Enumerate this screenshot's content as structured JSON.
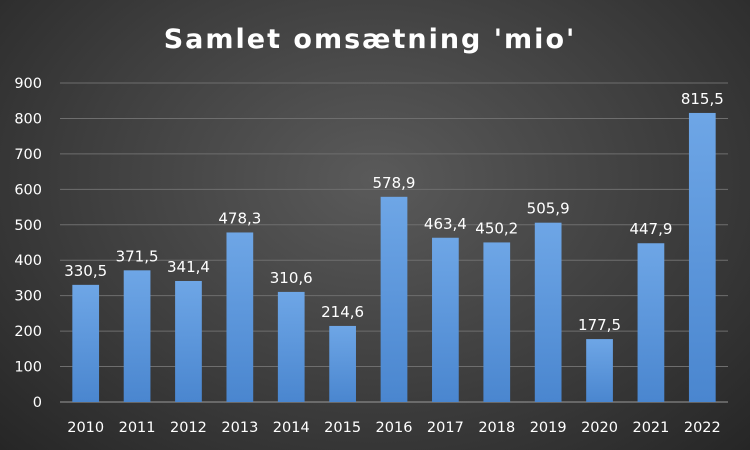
{
  "chart_data": {
    "type": "bar",
    "title": "Samlet omsætning 'mio'",
    "categories": [
      "2010",
      "2011",
      "2012",
      "2013",
      "2014",
      "2015",
      "2016",
      "2017",
      "2018",
      "2019",
      "2020",
      "2021",
      "2022"
    ],
    "values": [
      330.5,
      371.5,
      341.4,
      478.3,
      310.6,
      214.6,
      578.9,
      463.4,
      450.2,
      505.9,
      177.5,
      447.9,
      815.5
    ],
    "data_labels": [
      "330,5",
      "371,5",
      "341,4",
      "478,3",
      "310,6",
      "214,6",
      "578,9",
      "463,4",
      "450,2",
      "505,9",
      "177,5",
      "447,9",
      "815,5"
    ],
    "ylim": [
      0,
      900
    ],
    "yticks": [
      0,
      100,
      200,
      300,
      400,
      500,
      600,
      700,
      800,
      900
    ],
    "grid": true,
    "legend": "none",
    "bar_color_top": "#6ea6e6",
    "bar_color_bottom": "#4a86cf"
  }
}
